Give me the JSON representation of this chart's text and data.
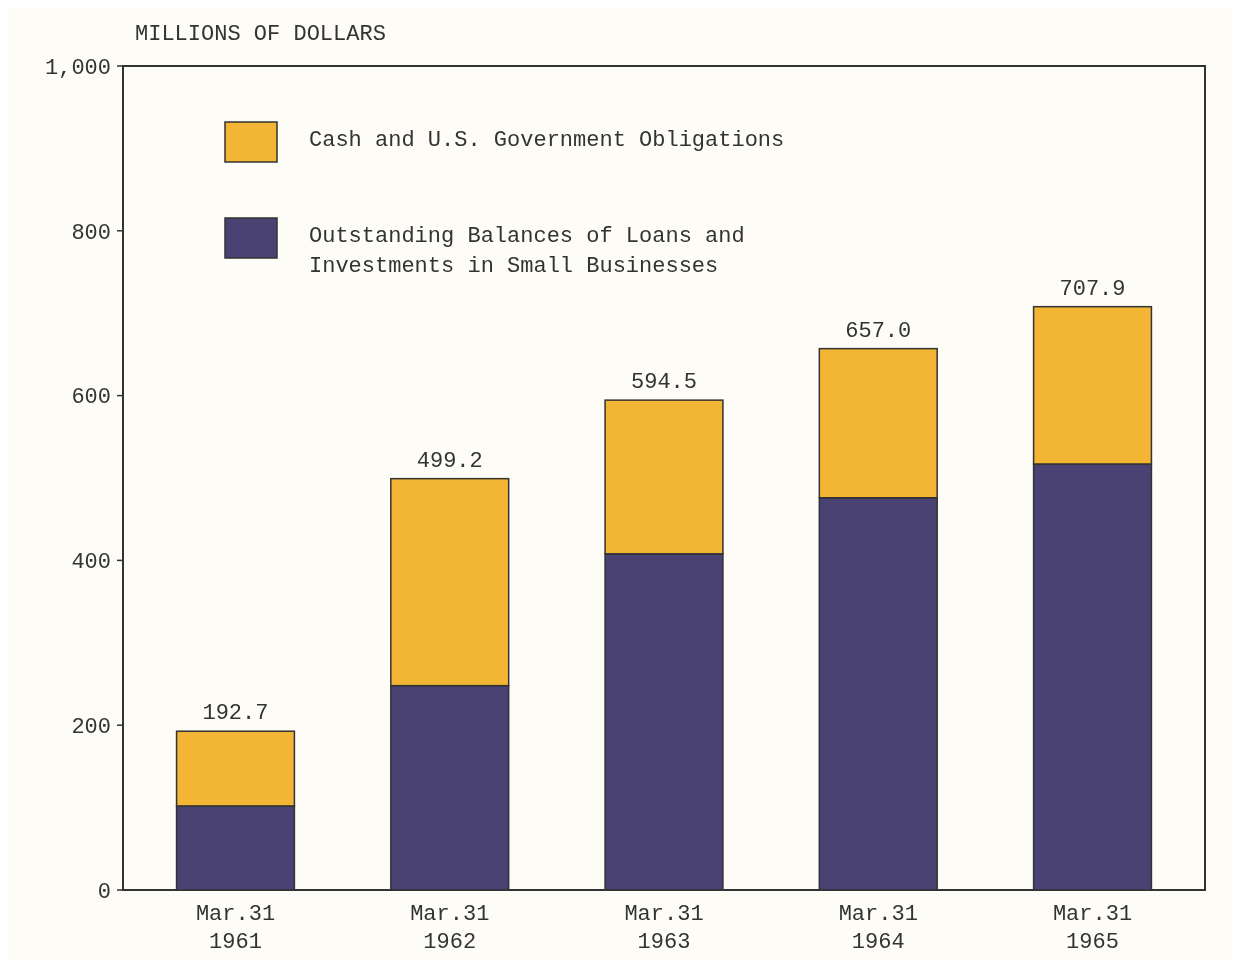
{
  "chart_data": {
    "type": "bar",
    "stacked": true,
    "ylabel": "MILLIONS OF DOLLARS",
    "categories": [
      "Mar.31\n1961",
      "Mar.31\n1962",
      "Mar.31\n1963",
      "Mar.31\n1964",
      "Mar.31\n1965"
    ],
    "series": [
      {
        "name": "Outstanding Balances of Loans and Investments in Small Businesses",
        "color": "#4a4272",
        "values": [
          102,
          248,
          408,
          476,
          517
        ]
      },
      {
        "name": "Cash and U.S. Government Obligations",
        "color": "#f3b534",
        "values": [
          90.7,
          251.2,
          186.5,
          181,
          190.9
        ]
      }
    ],
    "totals": [
      "192.7",
      "499.2",
      "594.5",
      "657.0",
      "707.9"
    ],
    "ylim": [
      0,
      1000
    ],
    "yticks": [
      0,
      200,
      400,
      600,
      800,
      {
        "value": 1000,
        "label": "1,000"
      }
    ],
    "grid": false,
    "legend": "top left"
  }
}
